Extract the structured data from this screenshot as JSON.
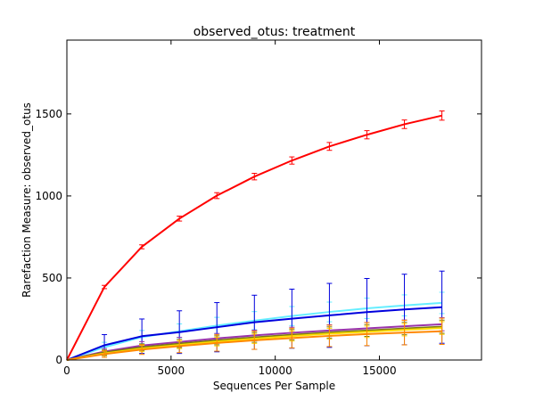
{
  "chart_data": {
    "type": "line",
    "title": "observed_otus: treatment",
    "xlabel": "Sequences Per Sample",
    "ylabel": "Rarefaction Measure: observed_otus",
    "xlim": [
      0,
      19900
    ],
    "ylim": [
      0,
      1950
    ],
    "xticks": [
      0,
      5000,
      10000,
      15000
    ],
    "yticks": [
      0,
      500,
      1000,
      1500
    ],
    "xtick_labels": [
      "0",
      "5000",
      "10000",
      "15000"
    ],
    "ytick_labels": [
      "0",
      "500",
      "1000",
      "1500"
    ],
    "grid": false,
    "legend": "none",
    "x": [
      0,
      1800,
      3600,
      5400,
      7200,
      9000,
      10800,
      12600,
      14400,
      16200,
      18000
    ],
    "series": [
      {
        "color": "#ff0000",
        "values": [
          0,
          445,
          690,
          862,
          1002,
          1118,
          1216,
          1302,
          1373,
          1437,
          1490
        ],
        "errors": [
          0,
          10,
          12,
          15,
          18,
          20,
          22,
          24,
          25,
          26,
          28
        ]
      },
      {
        "color": "#66eeff",
        "values": [
          0,
          78,
          140,
          175,
          210,
          240,
          268,
          293,
          315,
          333,
          348
        ],
        "errors": [
          0,
          30,
          40,
          45,
          50,
          55,
          58,
          60,
          62,
          64,
          65
        ]
      },
      {
        "color": "#0000dd",
        "values": [
          0,
          90,
          145,
          170,
          200,
          230,
          252,
          272,
          292,
          308,
          322
        ],
        "errors": [
          0,
          65,
          105,
          130,
          150,
          165,
          180,
          195,
          205,
          215,
          220
        ]
      },
      {
        "color": "#9933aa",
        "values": [
          0,
          52,
          88,
          110,
          132,
          150,
          166,
          180,
          193,
          206,
          218
        ],
        "errors": [
          0,
          18,
          24,
          28,
          30,
          32,
          34,
          35,
          36,
          38,
          40
        ]
      },
      {
        "color": "#7a7a10",
        "values": [
          0,
          46,
          78,
          100,
          120,
          138,
          154,
          168,
          180,
          192,
          203
        ],
        "errors": [
          0,
          15,
          20,
          24,
          27,
          30,
          32,
          34,
          36,
          38,
          40
        ]
      },
      {
        "color": "#ffdd00",
        "values": [
          0,
          40,
          70,
          92,
          112,
          130,
          146,
          160,
          172,
          184,
          195
        ],
        "errors": [
          0,
          14,
          19,
          23,
          26,
          29,
          31,
          33,
          35,
          37,
          39
        ]
      },
      {
        "color": "#ff8800",
        "values": [
          0,
          36,
          64,
          85,
          104,
          120,
          134,
          147,
          158,
          167,
          175
        ],
        "errors": [
          0,
          20,
          30,
          40,
          50,
          55,
          60,
          65,
          70,
          75,
          80
        ]
      }
    ]
  }
}
